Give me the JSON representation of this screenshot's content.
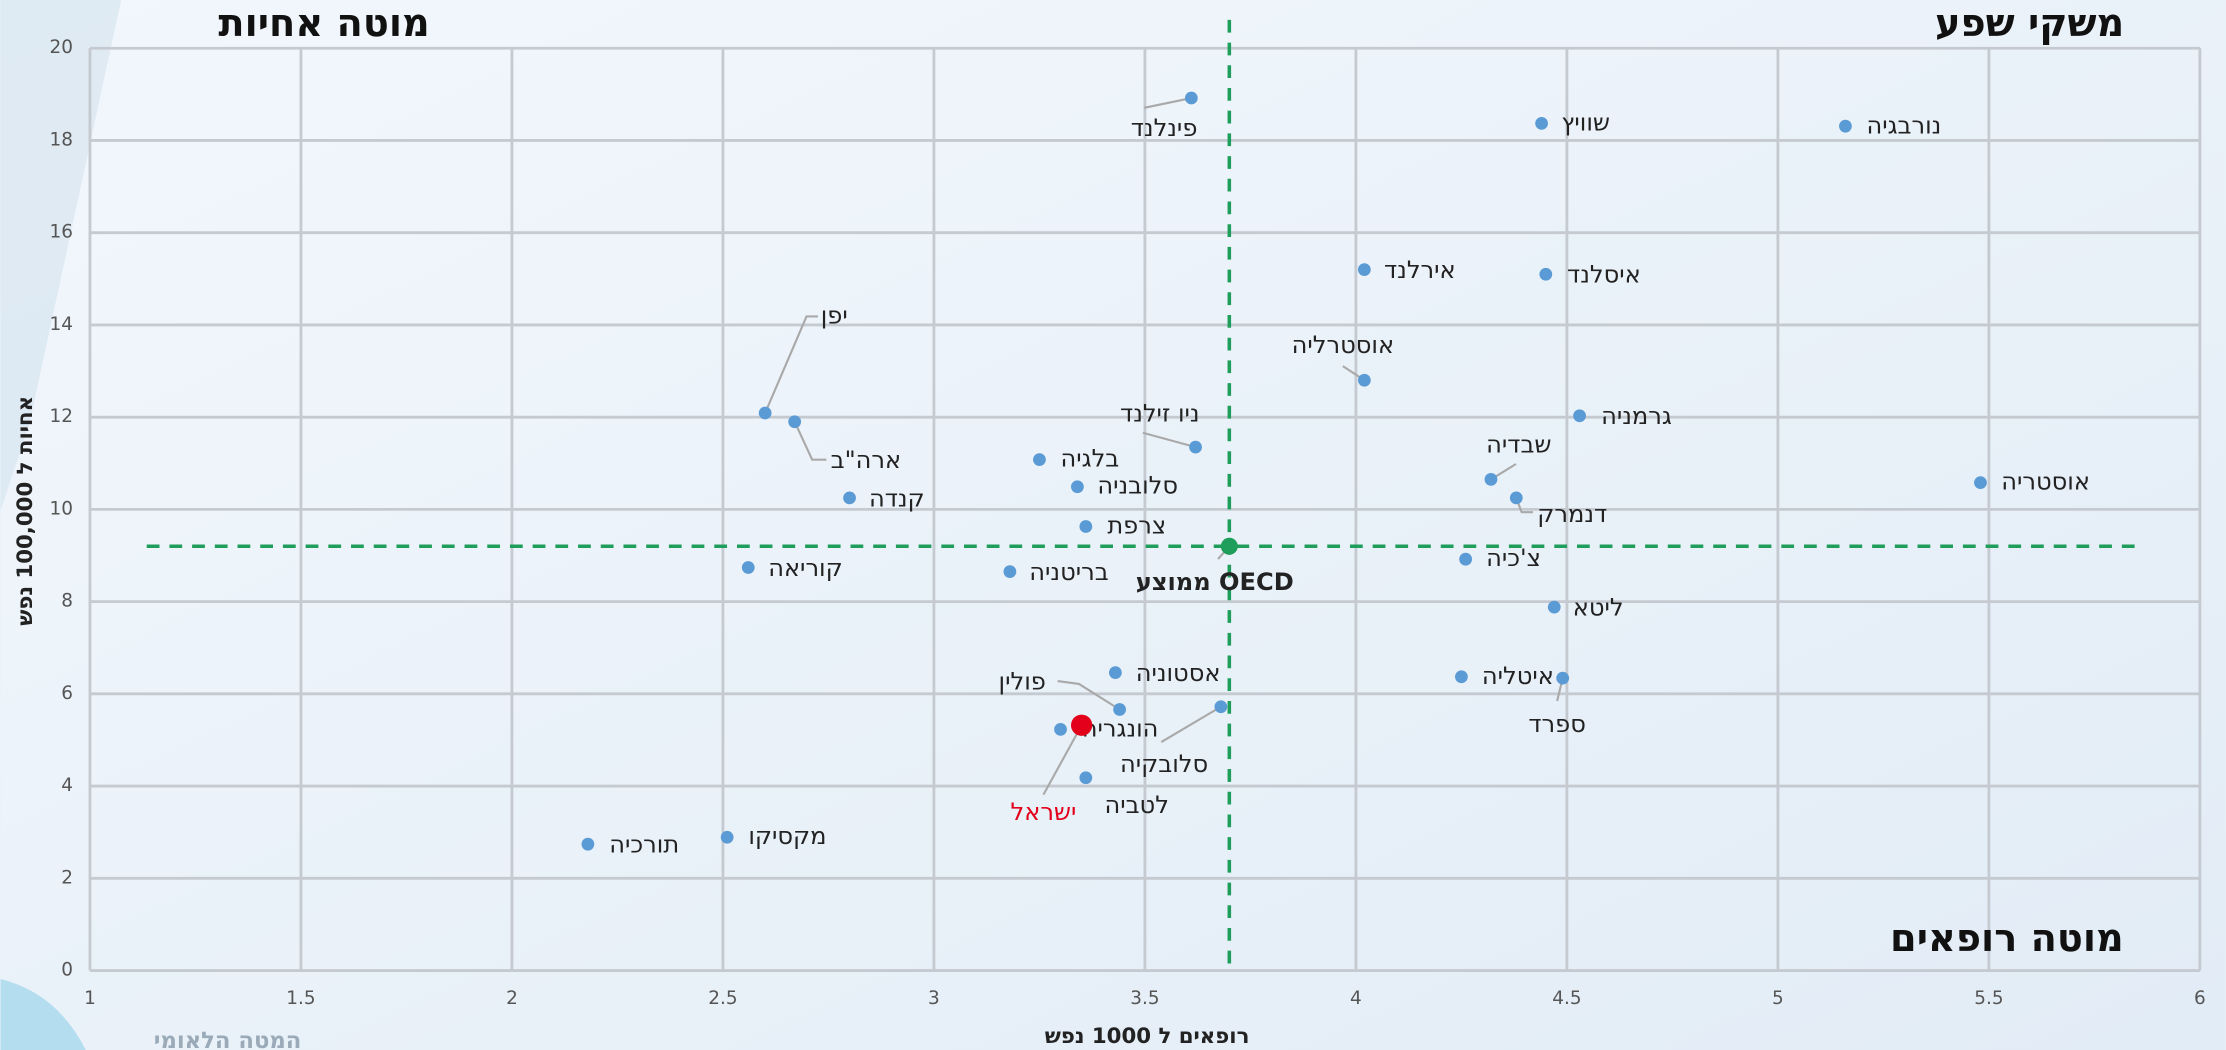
{
  "chart_data": {
    "type": "scatter",
    "xlabel": "רופאים ל 1000 נפש",
    "ylabel": "אחיות ל 100,000 נפש",
    "quadrant_labels": {
      "top_left": "מוטה אחיות",
      "top_right": "משקי שפע",
      "bottom_right": "מוטה רופאים"
    },
    "watermark": "המטה הלאומי",
    "xlim": [
      1,
      6
    ],
    "ylim": [
      0,
      20
    ],
    "xticks": [
      1,
      1.5,
      2,
      2.5,
      3,
      3.5,
      4,
      4.5,
      5,
      5.5,
      6
    ],
    "yticks": [
      0,
      2,
      4,
      6,
      8,
      10,
      12,
      14,
      16,
      18,
      20
    ],
    "grid": true,
    "color": "#5b9bd5",
    "reference_color": "#1e9e5a",
    "points": [
      {
        "label": "פינלנד",
        "x": 3.61,
        "y": 18.92
      },
      {
        "label": "שוויץ",
        "x": 4.44,
        "y": 18.37
      },
      {
        "label": "נורבגיה",
        "x": 5.16,
        "y": 18.31
      },
      {
        "label": "אירלנד",
        "x": 4.02,
        "y": 15.2
      },
      {
        "label": "איסלנד",
        "x": 4.45,
        "y": 15.1
      },
      {
        "label": "אוסטרליה",
        "x": 4.02,
        "y": 12.8
      },
      {
        "label": "יפן",
        "x": 2.6,
        "y": 12.09
      },
      {
        "label": "ארה\"ב",
        "x": 2.67,
        "y": 11.9
      },
      {
        "label": "גרמניה",
        "x": 4.53,
        "y": 12.03
      },
      {
        "label": "ניו זילנד",
        "x": 3.62,
        "y": 11.35
      },
      {
        "label": "בלגיה",
        "x": 3.25,
        "y": 11.08
      },
      {
        "label": "שבדיה",
        "x": 4.32,
        "y": 10.65
      },
      {
        "label": "אוסטריה",
        "x": 5.48,
        "y": 10.58
      },
      {
        "label": "סלובניה",
        "x": 3.34,
        "y": 10.49
      },
      {
        "label": "קנדה",
        "x": 2.8,
        "y": 10.25
      },
      {
        "label": "דנמרק",
        "x": 4.38,
        "y": 10.25
      },
      {
        "label": "צרפת",
        "x": 3.36,
        "y": 9.63
      },
      {
        "label": "ממוצע OECD",
        "x": 3.7,
        "y": 9.2,
        "color": "#1e9e5a",
        "reference": true
      },
      {
        "label": "צ'כיה",
        "x": 4.26,
        "y": 8.92
      },
      {
        "label": "קוריאה",
        "x": 2.56,
        "y": 8.74
      },
      {
        "label": "בריטניה",
        "x": 3.18,
        "y": 8.65
      },
      {
        "label": "ליטא",
        "x": 4.47,
        "y": 7.88
      },
      {
        "label": "אסטוניה",
        "x": 3.43,
        "y": 6.46
      },
      {
        "label": "איטליה",
        "x": 4.25,
        "y": 6.37
      },
      {
        "label": "ספרד",
        "x": 4.49,
        "y": 6.34
      },
      {
        "label": "פולין",
        "x": 3.44,
        "y": 5.66
      },
      {
        "label": "סלובקיה",
        "x": 3.68,
        "y": 5.72
      },
      {
        "label": "הונגריה",
        "x": 3.3,
        "y": 5.23
      },
      {
        "label": "ישראל",
        "x": 3.35,
        "y": 5.32,
        "color": "#e3001b"
      },
      {
        "label": "לטביה",
        "x": 3.36,
        "y": 4.18
      },
      {
        "label": "מקסיקו",
        "x": 2.51,
        "y": 2.89
      },
      {
        "label": "תורכיה",
        "x": 2.18,
        "y": 2.74
      }
    ]
  }
}
